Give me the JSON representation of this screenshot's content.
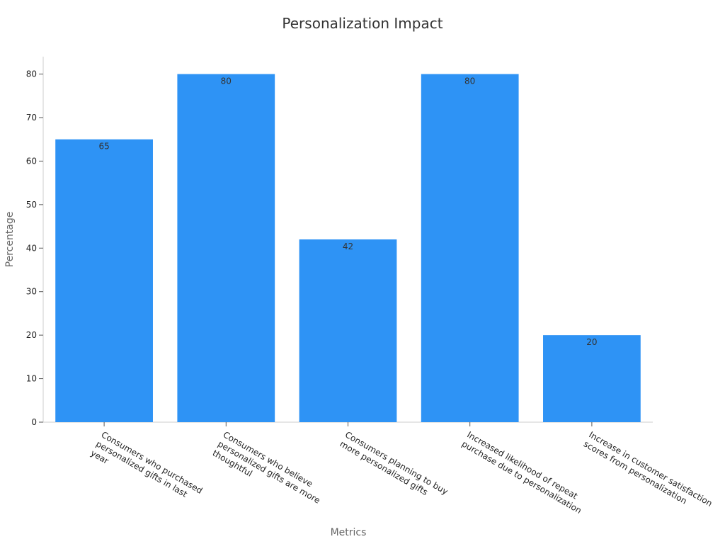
{
  "chart_data": {
    "type": "bar",
    "title": "Personalization Impact",
    "xlabel": "Metrics",
    "ylabel": "Percentage",
    "ylim": [
      0,
      84
    ],
    "yticks": [
      0,
      10,
      20,
      30,
      40,
      50,
      60,
      70,
      80
    ],
    "grid": false,
    "bar_color": "#2e93f5",
    "categories": [
      [
        "Consumers who purchased",
        "personalized gifts in last",
        "year"
      ],
      [
        "Consumers who believe",
        "personalized gifts are more",
        "thoughtful"
      ],
      [
        "Consumers planning to buy",
        "more personalized gifts"
      ],
      [
        "Increased likelihood of repeat",
        "purchase due to personalization"
      ],
      [
        "Increase in customer satisfaction",
        "scores from personalization"
      ]
    ],
    "values": [
      65,
      80,
      42,
      80,
      20
    ],
    "value_labels": [
      "65",
      "80",
      "42",
      "80",
      "20"
    ]
  }
}
